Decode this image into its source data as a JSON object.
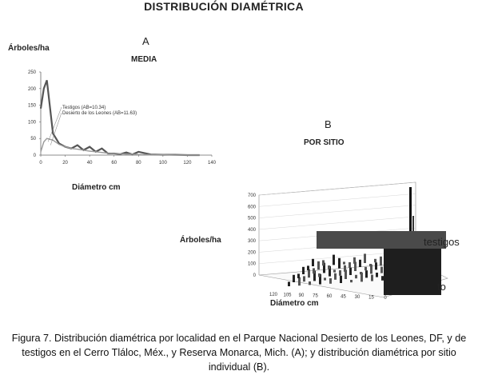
{
  "title": "DISTRIBUCIÓN DIAMÉTRICA",
  "panel_a": {
    "letter": "A",
    "subtitle": "MEDIA"
  },
  "panel_b": {
    "letter": "B",
    "subtitle": "POR SITIO"
  },
  "caption": "Figura 7. Distribución diamétrica por localidad en el Parque Nacional Desierto de los Leones, DF, y de testigos en el Cerro Tláloc, Méx., y Reserva Monarca, Mich. (A); y distribución diamétrica por sitio individual (B).",
  "chart_data": [
    {
      "type": "line",
      "ylabel": "Árboles/ha",
      "xlabel": "Diámetro cm",
      "xlim": [
        0,
        140
      ],
      "ylim": [
        0,
        250
      ],
      "x_ticks": [
        0,
        20,
        40,
        60,
        80,
        100,
        120,
        140
      ],
      "y_ticks": [
        0,
        50,
        100,
        150,
        200,
        250
      ],
      "series": [
        {
          "name": "Testigos (AB=10.34)",
          "x": [
            0,
            2.5,
            5,
            10,
            15,
            20,
            25,
            30,
            35,
            40,
            45,
            50,
            55,
            60,
            65,
            70,
            75,
            80,
            90,
            100,
            110,
            120,
            130
          ],
          "y": [
            140,
            200,
            225,
            65,
            35,
            25,
            20,
            30,
            15,
            25,
            10,
            20,
            5,
            5,
            3,
            8,
            2,
            10,
            2,
            1,
            1,
            0,
            0
          ]
        },
        {
          "name": "Desierto de los Leones (AB=11.63)",
          "x": [
            0,
            2.5,
            5,
            10,
            15,
            20,
            25,
            30,
            35,
            40,
            45,
            50,
            55,
            60,
            65,
            70,
            75,
            80,
            90,
            100,
            110,
            120,
            130
          ],
          "y": [
            10,
            40,
            50,
            45,
            32,
            25,
            20,
            18,
            15,
            12,
            10,
            8,
            6,
            5,
            4,
            3,
            3,
            2,
            1,
            1,
            0,
            0,
            0
          ]
        }
      ]
    },
    {
      "type": "bar",
      "ylabel": "Árboles/ha",
      "xlabel": "Diámetro cm",
      "z_ticks": [
        0,
        100,
        200,
        300,
        400,
        500,
        600,
        700
      ],
      "x_ticks": [
        120,
        105,
        90,
        75,
        60,
        45,
        30,
        15,
        0
      ],
      "legend": [
        "testigos",
        "to"
      ]
    }
  ]
}
